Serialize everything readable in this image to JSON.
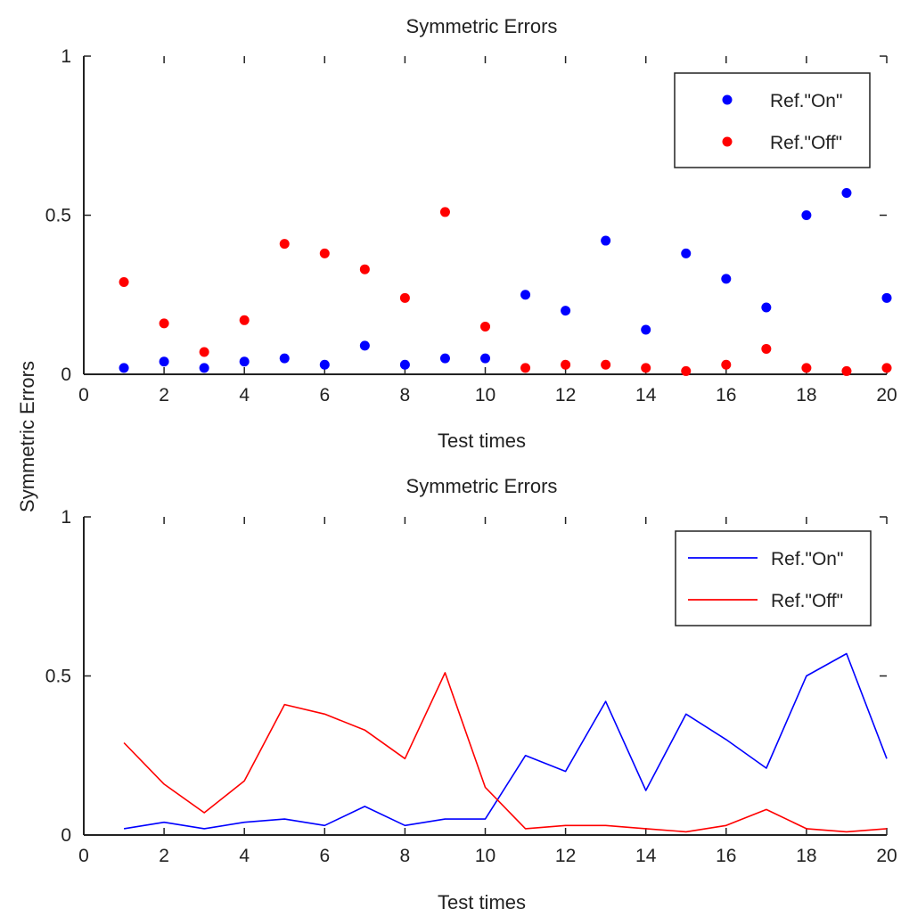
{
  "figure": {
    "ylabel": "Symmetric Errors"
  },
  "chart_data": [
    {
      "type": "scatter",
      "title": "Symmetric Errors",
      "xlabel": "Test times",
      "ylabel": "Symmetric Errors",
      "xlim": [
        0,
        20
      ],
      "ylim": [
        0,
        1
      ],
      "xticks": [
        "0",
        "2",
        "4",
        "6",
        "8",
        "10",
        "12",
        "14",
        "16",
        "18",
        "20"
      ],
      "yticks": [
        "0",
        "0.5",
        "1"
      ],
      "grid": false,
      "legend": "top-right",
      "x": [
        1,
        2,
        3,
        4,
        5,
        6,
        7,
        8,
        9,
        10,
        11,
        12,
        13,
        14,
        15,
        16,
        17,
        18,
        19,
        20
      ],
      "series": [
        {
          "name": "Ref.\"On\"",
          "color": "#0000ff",
          "values": [
            0.02,
            0.04,
            0.02,
            0.04,
            0.05,
            0.03,
            0.09,
            0.03,
            0.05,
            0.05,
            0.25,
            0.2,
            0.42,
            0.14,
            0.38,
            0.3,
            0.21,
            0.5,
            0.57,
            0.24
          ]
        },
        {
          "name": "Ref.\"Off\"",
          "color": "#ff0000",
          "values": [
            0.29,
            0.16,
            0.07,
            0.17,
            0.41,
            0.38,
            0.33,
            0.24,
            0.51,
            0.15,
            0.02,
            0.03,
            0.03,
            0.02,
            0.01,
            0.03,
            0.08,
            0.02,
            0.01,
            0.02
          ]
        }
      ]
    },
    {
      "type": "line",
      "title": "Symmetric Errors",
      "xlabel": "Test times",
      "ylabel": "Symmetric Errors",
      "xlim": [
        0,
        20
      ],
      "ylim": [
        0,
        1
      ],
      "xticks": [
        "0",
        "2",
        "4",
        "6",
        "8",
        "10",
        "12",
        "14",
        "16",
        "18",
        "20"
      ],
      "yticks": [
        "0",
        "0.5",
        "1"
      ],
      "grid": false,
      "legend": "top-right",
      "x": [
        1,
        2,
        3,
        4,
        5,
        6,
        7,
        8,
        9,
        10,
        11,
        12,
        13,
        14,
        15,
        16,
        17,
        18,
        19,
        20
      ],
      "series": [
        {
          "name": "Ref.\"On\"",
          "color": "#0000ff",
          "values": [
            0.02,
            0.04,
            0.02,
            0.04,
            0.05,
            0.03,
            0.09,
            0.03,
            0.05,
            0.05,
            0.25,
            0.2,
            0.42,
            0.14,
            0.38,
            0.3,
            0.21,
            0.5,
            0.57,
            0.24
          ]
        },
        {
          "name": "Ref.\"Off\"",
          "color": "#ff0000",
          "values": [
            0.29,
            0.16,
            0.07,
            0.17,
            0.41,
            0.38,
            0.33,
            0.24,
            0.51,
            0.15,
            0.02,
            0.03,
            0.03,
            0.02,
            0.01,
            0.03,
            0.08,
            0.02,
            0.01,
            0.02
          ]
        }
      ]
    }
  ]
}
